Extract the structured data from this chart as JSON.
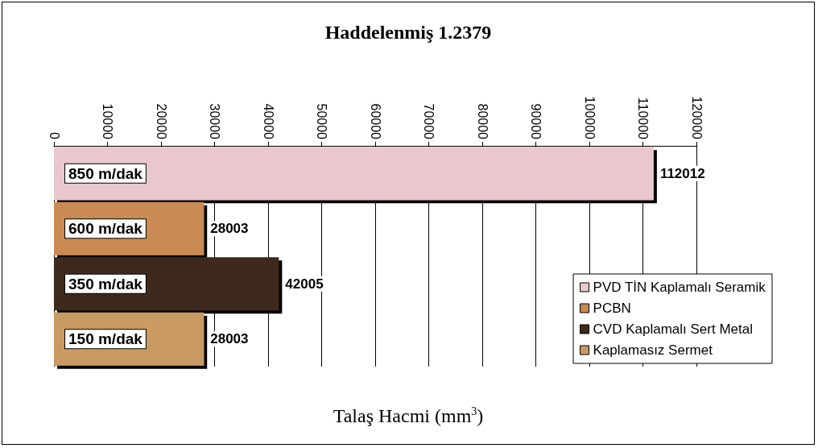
{
  "chart_data": {
    "type": "bar",
    "orientation": "horizontal",
    "title": "Haddelenmiş 1.2379",
    "xlabel": "Talaş Hacmi (mm$^{3}$)",
    "categories": [
      "850 m/dak",
      "600 m/dak",
      "350 m/dak",
      "150 m/dak"
    ],
    "series": [
      {
        "name": "PVD TİN Kaplamalı Seramik",
        "color": "#e8c8cc",
        "values": [
          112012,
          null,
          null,
          null
        ]
      },
      {
        "name": "PCBN",
        "color": "#c98a52",
        "values": [
          null,
          28003,
          null,
          null
        ]
      },
      {
        "name": "CVD Kaplamalı Sert Metal",
        "color": "#3e2a1c",
        "values": [
          null,
          null,
          42005,
          null
        ]
      },
      {
        "name": "Kaplamasız Sermet",
        "color": "#c99a62",
        "values": [
          null,
          null,
          null,
          28003
        ]
      }
    ],
    "xlim": [
      0,
      120000
    ],
    "xticks": [
      0,
      10000,
      20000,
      30000,
      40000,
      50000,
      60000,
      70000,
      80000,
      90000,
      100000,
      110000,
      120000
    ],
    "grid": "x",
    "legend": "bottom right",
    "data_labels": true
  }
}
